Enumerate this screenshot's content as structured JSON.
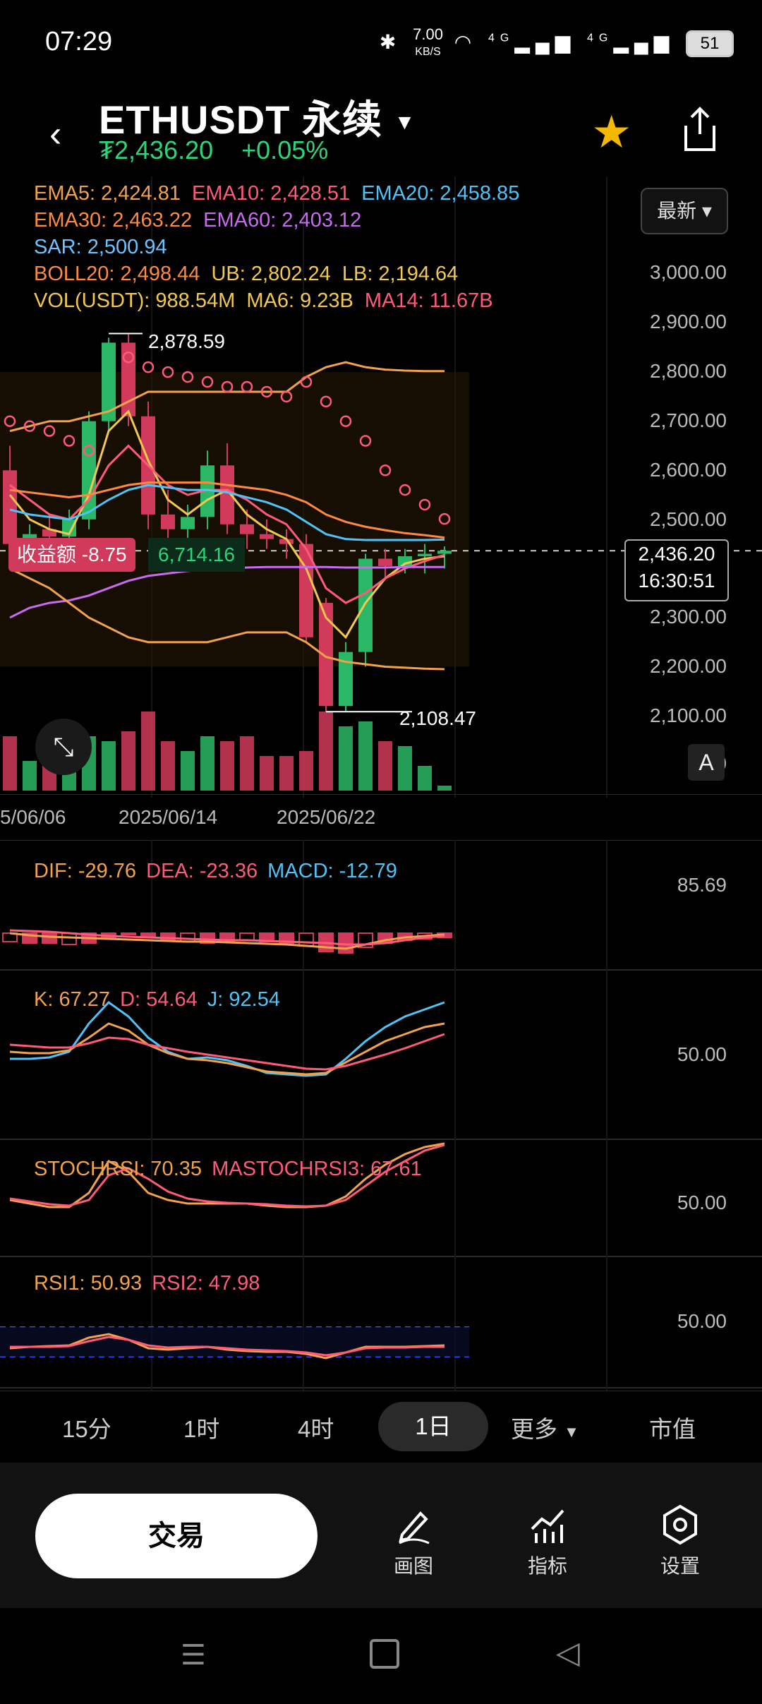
{
  "status": {
    "time": "07:29",
    "net_speed": "7.00",
    "net_unit": "KB/S",
    "sig1": "4G",
    "sig2": "4G",
    "battery": "51"
  },
  "header": {
    "symbol": "ETHUSDT 永续",
    "price": "₮2,436.20",
    "change": "+0.05%"
  },
  "legend": {
    "ema5": "EMA5: 2,424.81",
    "ema10": "EMA10: 2,428.51",
    "ema20": "EMA20: 2,458.85",
    "ema30": "EMA30: 2,463.22",
    "ema60": "EMA60: 2,403.12",
    "sar": "SAR: 2,500.94",
    "boll": "BOLL20: 2,498.44",
    "ub": "UB: 2,802.24",
    "lb": "LB: 2,194.64",
    "vol": "VOL(USDT): 988.54M",
    "ma6": "MA6: 9.23B",
    "ma14": "MA14: 11.67B"
  },
  "latest_button": "最新",
  "price_axis": [
    "3,000.00",
    "2,900.00",
    "2,800.00",
    "2,700.00",
    "2,600.00",
    "2,500.00",
    "2,300.00",
    "2,200.00",
    "2,100.00",
    "2,00"
  ],
  "high_label": "2,878.59",
  "low_label": "2,108.47",
  "profit": {
    "label": "收益额 -8.75",
    "value": "6,714.16"
  },
  "current": {
    "price": "2,436.20",
    "countdown": "16:30:51"
  },
  "a_button": "A",
  "dates": [
    "5/06/06",
    "2025/06/14",
    "2025/06/22"
  ],
  "macd": {
    "dif": "DIF: -29.76",
    "dea": "DEA: -23.36",
    "macd": "MACD: -12.79",
    "axis": "85.69"
  },
  "kdj": {
    "k": "K: 67.27",
    "d": "D: 54.64",
    "j": "J: 92.54",
    "axis": "50.00"
  },
  "stoch": {
    "stoch": "STOCHRSI: 70.35",
    "ma": "MASTOCHRSI3: 67.61",
    "axis": "50.00"
  },
  "rsi": {
    "rsi1": "RSI1: 50.93",
    "rsi2": "RSI2: 47.98",
    "axis": "50.00"
  },
  "timeframes": [
    "15分",
    "1时",
    "4时",
    "1日",
    "更多",
    "市值"
  ],
  "bottom": {
    "trade": "交易",
    "draw": "画图",
    "indicator": "指标",
    "settings": "设置"
  },
  "colors": {
    "up": "#2bb866",
    "down": "#d13a5a",
    "ema5": "#f2c94c",
    "ema10": "#ff5a7a",
    "ema20": "#4fc3f7",
    "ema30": "#ff8a3d",
    "ema60": "#c86bf0"
  },
  "chart_data": {
    "type": "candlestick",
    "y_range": [
      2000,
      3050
    ],
    "candles": [
      {
        "o": 2600,
        "h": 2650,
        "l": 2410,
        "c": 2450
      },
      {
        "o": 2450,
        "h": 2490,
        "l": 2420,
        "c": 2470
      },
      {
        "o": 2480,
        "h": 2510,
        "l": 2440,
        "c": 2465
      },
      {
        "o": 2465,
        "h": 2520,
        "l": 2450,
        "c": 2500
      },
      {
        "o": 2500,
        "h": 2720,
        "l": 2480,
        "c": 2700
      },
      {
        "o": 2700,
        "h": 2870,
        "l": 2680,
        "c": 2860
      },
      {
        "o": 2860,
        "h": 2878.59,
        "l": 2690,
        "c": 2710
      },
      {
        "o": 2710,
        "h": 2740,
        "l": 2480,
        "c": 2510
      },
      {
        "o": 2510,
        "h": 2560,
        "l": 2460,
        "c": 2480
      },
      {
        "o": 2480,
        "h": 2530,
        "l": 2450,
        "c": 2505
      },
      {
        "o": 2505,
        "h": 2640,
        "l": 2480,
        "c": 2610
      },
      {
        "o": 2610,
        "h": 2655,
        "l": 2470,
        "c": 2490
      },
      {
        "o": 2490,
        "h": 2520,
        "l": 2440,
        "c": 2470
      },
      {
        "o": 2470,
        "h": 2500,
        "l": 2440,
        "c": 2460
      },
      {
        "o": 2460,
        "h": 2480,
        "l": 2420,
        "c": 2450
      },
      {
        "o": 2450,
        "h": 2470,
        "l": 2250,
        "c": 2260
      },
      {
        "o": 2330,
        "h": 2340,
        "l": 2108.47,
        "c": 2120
      },
      {
        "o": 2120,
        "h": 2250,
        "l": 2110,
        "c": 2230
      },
      {
        "o": 2230,
        "h": 2430,
        "l": 2200,
        "c": 2420
      },
      {
        "o": 2420,
        "h": 2440,
        "l": 2380,
        "c": 2405
      },
      {
        "o": 2405,
        "h": 2440,
        "l": 2390,
        "c": 2425
      },
      {
        "o": 2425,
        "h": 2450,
        "l": 2390,
        "c": 2430
      },
      {
        "o": 2430,
        "h": 2445,
        "l": 2400,
        "c": 2436.2
      }
    ]
  }
}
